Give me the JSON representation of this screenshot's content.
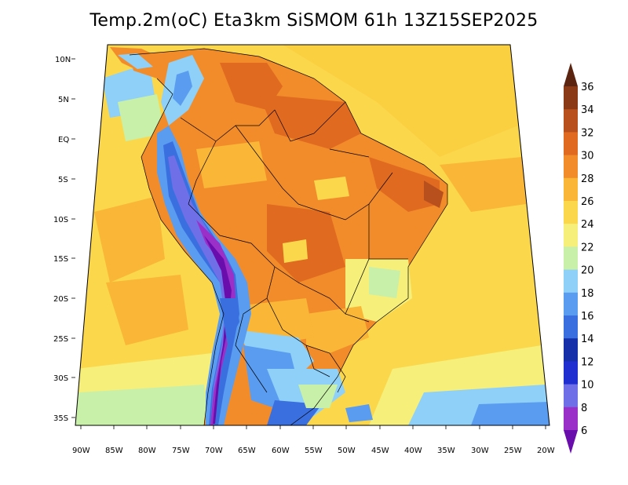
{
  "title": "Temp.2m(oC) Eta3km SiSMOM 61h 13Z15SEP2025",
  "latitude_ticks": [
    "10N",
    "5N",
    "EQ",
    "5S",
    "10S",
    "15S",
    "20S",
    "25S",
    "30S",
    "35S"
  ],
  "longitude_ticks": [
    "90W",
    "85W",
    "80W",
    "75W",
    "70W",
    "65W",
    "60W",
    "55W",
    "50W",
    "45W",
    "40W",
    "35W",
    "30W",
    "25W",
    "20W"
  ],
  "colorbar": {
    "unit_hint": "oC",
    "levels": [
      6,
      8,
      10,
      12,
      14,
      16,
      18,
      20,
      22,
      24,
      26,
      28,
      30,
      32,
      34,
      36
    ],
    "colors": [
      "#6a0dad",
      "#9b30c9",
      "#6f6fe8",
      "#1f2fd0",
      "#1530a8",
      "#3a6fe0",
      "#5a9cf0",
      "#8fd0f8",
      "#c8f0a8",
      "#f6f07a",
      "#fbd74c",
      "#f9b637",
      "#f28c2a",
      "#e06a20",
      "#b8501e",
      "#8a3a17",
      "#5a2410"
    ]
  }
}
